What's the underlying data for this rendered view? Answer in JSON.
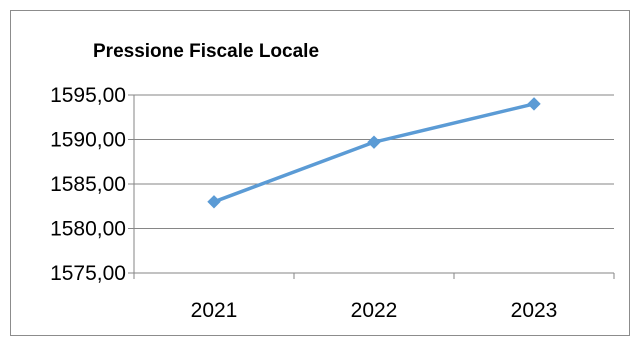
{
  "chart_data": {
    "type": "line",
    "title": "Pressione Fiscale Locale",
    "xlabel": "",
    "ylabel": "",
    "categories": [
      "2021",
      "2022",
      "2023"
    ],
    "series": [
      {
        "values": [
          1583.0,
          1589.7,
          1594.0
        ],
        "color": "#5b9bd5"
      }
    ],
    "ylim": [
      1575,
      1595
    ],
    "yticks": [
      1575,
      1580,
      1585,
      1590,
      1595
    ],
    "ytick_labels": [
      "1575,00",
      "1580,00",
      "1585,00",
      "1590,00",
      "1595,00"
    ],
    "grid": true,
    "legend": "none"
  }
}
